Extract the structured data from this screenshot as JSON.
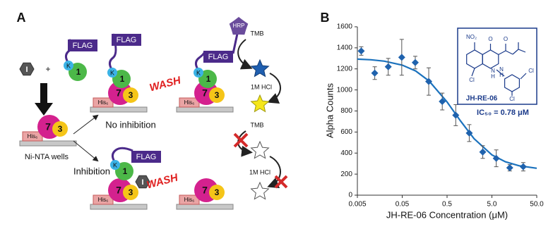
{
  "panel_a": {
    "label": "A",
    "plus": "+",
    "inhibitor": [
      "I",
      "I"
    ],
    "flag": [
      "FLAG",
      "FLAG",
      "FLAG",
      "FLAG"
    ],
    "k": [
      "K",
      "K",
      "K",
      "K"
    ],
    "one": [
      "1",
      "1",
      "1",
      "1"
    ],
    "seven": [
      "7",
      "7",
      "7",
      "7",
      "7"
    ],
    "three": [
      "3",
      "3",
      "3",
      "3",
      "3"
    ],
    "his": [
      "His₆",
      "His₆",
      "His₆",
      "His₆",
      "His₆"
    ],
    "wells": "Ni-NTA wells",
    "no_inhibition": "No inhibition",
    "inhibition": "Inhibition",
    "wash": [
      "WASH",
      "WASH"
    ],
    "hrp": "HRP",
    "tmb": [
      "TMB",
      "TMB"
    ],
    "hcl": [
      "1M HCl",
      "1M HCl"
    ]
  },
  "chart_data": {
    "type": "scatter",
    "panel_label": "B",
    "xlabel": "JH-RE-06 Concentration (μM)",
    "ylabel": "Alpha Counts",
    "xscale": "log",
    "xlim": [
      0.005,
      50
    ],
    "xticks": [
      0.005,
      0.05,
      0.5,
      {
        "value": 5,
        "label": "5.0"
      },
      {
        "value": 50,
        "label": "50.0"
      }
    ],
    "ylim": [
      0,
      1600
    ],
    "yticks": [
      0,
      200,
      400,
      600,
      800,
      1000,
      1200,
      1400,
      1600
    ],
    "series": [
      {
        "color": "#1f62ad",
        "x": [
          0.0061,
          0.0122,
          0.0244,
          0.0488,
          0.0977,
          0.195,
          0.391,
          0.781,
          1.563,
          3.125,
          6.25,
          12.5,
          25
        ],
        "values": [
          1370,
          1160,
          1220,
          1310,
          1260,
          1080,
          890,
          760,
          590,
          410,
          350,
          260,
          270
        ],
        "errors": [
          40,
          60,
          80,
          170,
          60,
          130,
          80,
          100,
          80,
          60,
          80,
          30,
          40
        ]
      }
    ],
    "fit": {
      "color": "#1b72bd",
      "x": [
        0.005,
        0.01,
        0.02,
        0.05,
        0.1,
        0.2,
        0.5,
        1,
        2,
        5,
        10,
        20,
        50
      ],
      "values": [
        1293,
        1287,
        1273,
        1236,
        1180,
        1084,
        886,
        705,
        537,
        383,
        317,
        280,
        256
      ]
    },
    "annotations": {
      "compound": "JH-RE-06",
      "ic50": "IC₅₀ = 0.78 μM",
      "structure_labels": [
        "NO₂",
        "O",
        "O",
        "N",
        "H",
        "N",
        "H",
        "Cl",
        "Cl",
        "Cl"
      ]
    }
  }
}
